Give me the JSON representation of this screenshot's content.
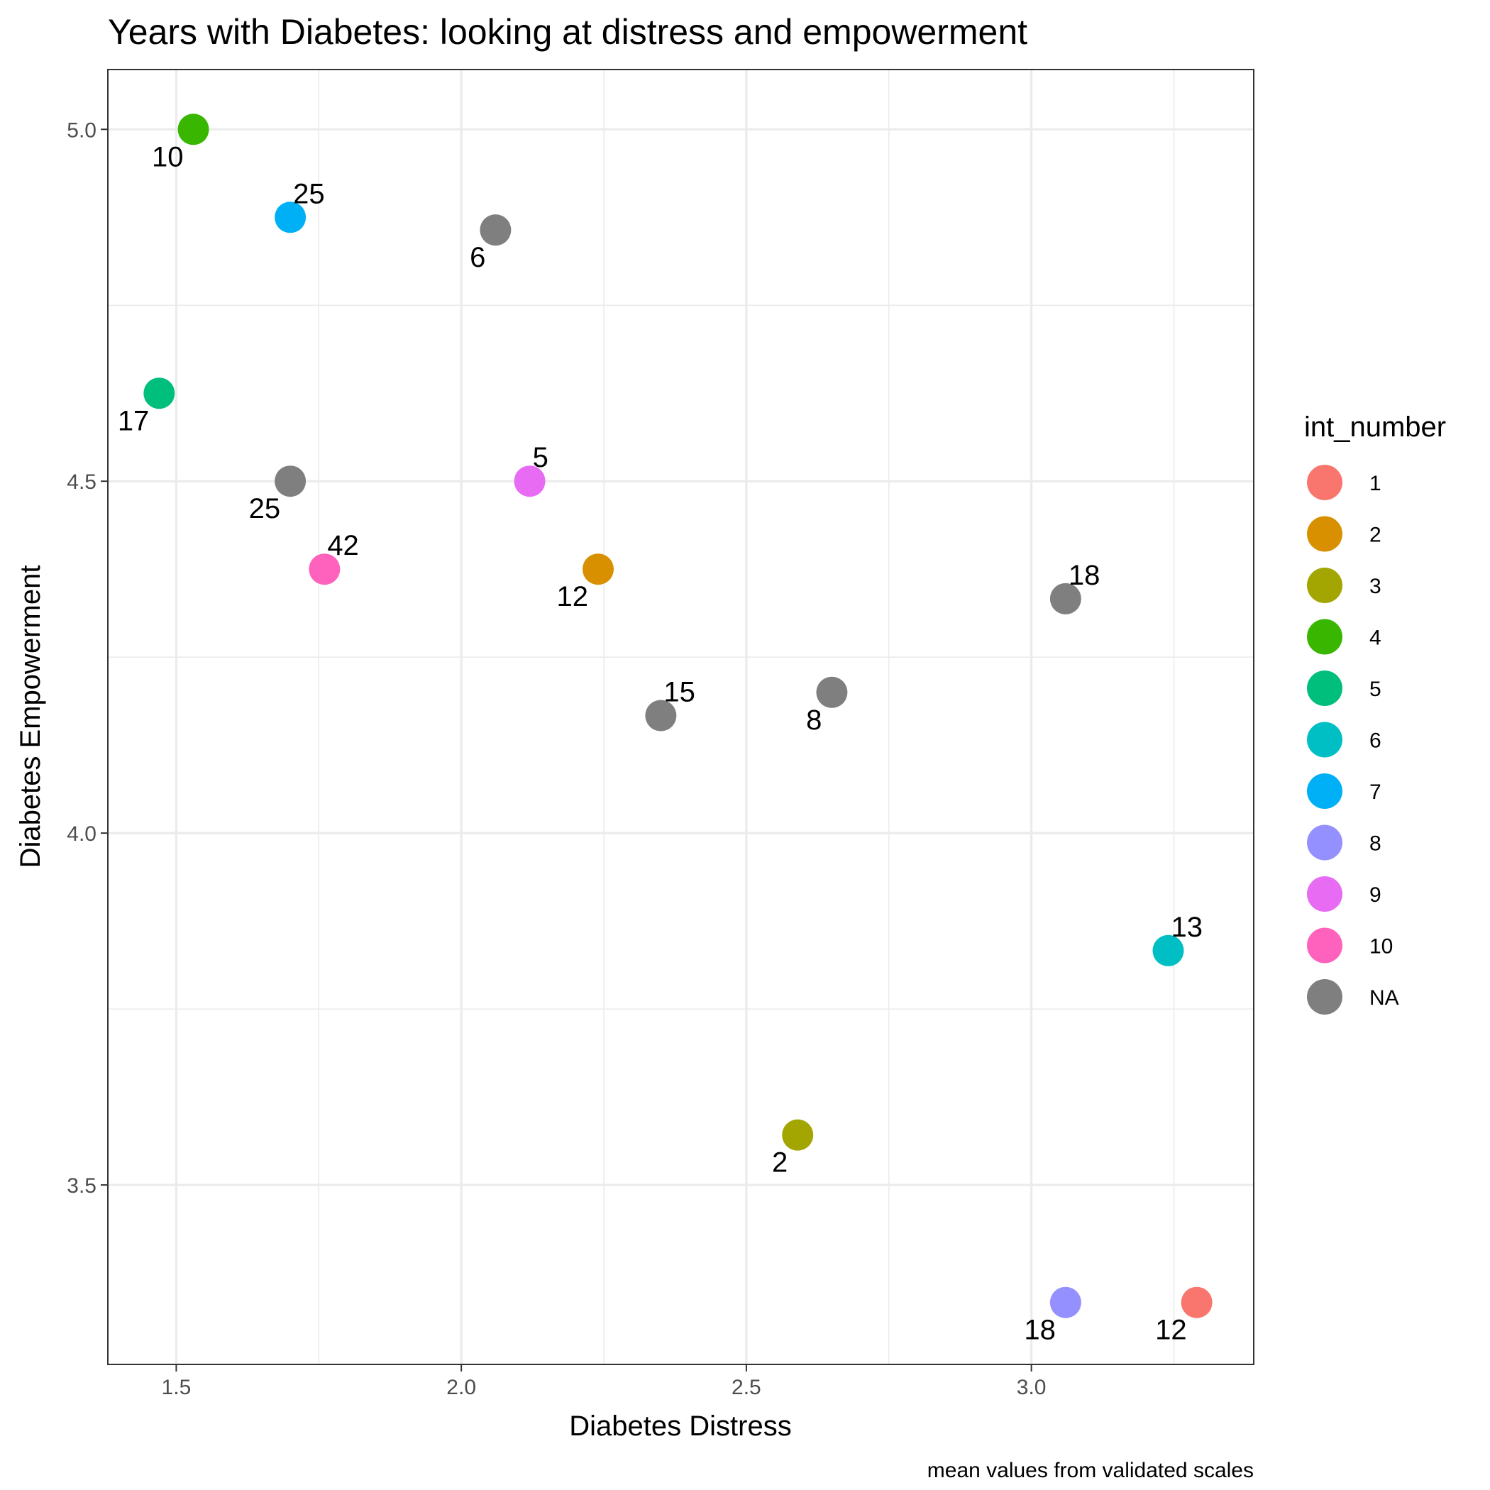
{
  "chart_data": {
    "type": "scatter",
    "title": "Years with Diabetes: looking at distress and empowerment",
    "xlabel": "Diabetes Distress",
    "ylabel": "Diabetes Empowerment",
    "caption": "mean values from validated scales",
    "xlim": [
      1.38,
      3.39
    ],
    "ylim": [
      3.245,
      5.085
    ],
    "x_ticks": [
      1.5,
      2.0,
      2.5,
      3.0
    ],
    "x_tick_labels": [
      "1.5",
      "2.0",
      "2.5",
      "3.0"
    ],
    "y_ticks": [
      3.5,
      4.0,
      4.5,
      5.0
    ],
    "y_tick_labels": [
      "3.5",
      "4.0",
      "4.5",
      "5.0"
    ],
    "x_minor_ticks": [
      1.75,
      2.25,
      2.75,
      3.25
    ],
    "y_minor_ticks": [
      3.75,
      4.25,
      4.75
    ],
    "grid": true,
    "legend": {
      "title": "int_number",
      "placement": "right",
      "entries": [
        {
          "label": "1",
          "color": "#F8766D"
        },
        {
          "label": "2",
          "color": "#D89000"
        },
        {
          "label": "3",
          "color": "#A3A500"
        },
        {
          "label": "4",
          "color": "#39B600"
        },
        {
          "label": "5",
          "color": "#00BF7D"
        },
        {
          "label": "6",
          "color": "#00BFC4"
        },
        {
          "label": "7",
          "color": "#00B0F6"
        },
        {
          "label": "8",
          "color": "#9590FF"
        },
        {
          "label": "9",
          "color": "#E76BF3"
        },
        {
          "label": "10",
          "color": "#FF62BC"
        },
        {
          "label": "NA",
          "color": "#7F7F7F"
        }
      ]
    },
    "points": [
      {
        "x": 1.53,
        "y": 5.0,
        "group": "4",
        "label": "10",
        "label_pos": "below-left"
      },
      {
        "x": 1.7,
        "y": 4.875,
        "group": "7",
        "label": "25",
        "label_pos": "above-right"
      },
      {
        "x": 2.06,
        "y": 4.857,
        "group": "NA",
        "label": "6",
        "label_pos": "below-left"
      },
      {
        "x": 1.47,
        "y": 4.625,
        "group": "5",
        "label": "17",
        "label_pos": "below-left"
      },
      {
        "x": 1.7,
        "y": 4.5,
        "group": "NA",
        "label": "25",
        "label_pos": "below-left"
      },
      {
        "x": 2.12,
        "y": 4.5,
        "group": "9",
        "label": "5",
        "label_pos": "above-right"
      },
      {
        "x": 1.76,
        "y": 4.375,
        "group": "10",
        "label": "42",
        "label_pos": "above-right"
      },
      {
        "x": 2.24,
        "y": 4.375,
        "group": "2",
        "label": "12",
        "label_pos": "below-left"
      },
      {
        "x": 3.06,
        "y": 4.333,
        "group": "NA",
        "label": "18",
        "label_pos": "above-right"
      },
      {
        "x": 2.65,
        "y": 4.2,
        "group": "NA",
        "label": "8",
        "label_pos": "below-left"
      },
      {
        "x": 2.35,
        "y": 4.167,
        "group": "NA",
        "label": "15",
        "label_pos": "above-right"
      },
      {
        "x": 3.24,
        "y": 3.833,
        "group": "6",
        "label": "13",
        "label_pos": "above-right"
      },
      {
        "x": 2.59,
        "y": 3.571,
        "group": "3",
        "label": "2",
        "label_pos": "below-left"
      },
      {
        "x": 3.06,
        "y": 3.333,
        "group": "8",
        "label": "18",
        "label_pos": "below-left"
      },
      {
        "x": 3.29,
        "y": 3.333,
        "group": "1",
        "label": "12",
        "label_pos": "below-left"
      }
    ]
  }
}
